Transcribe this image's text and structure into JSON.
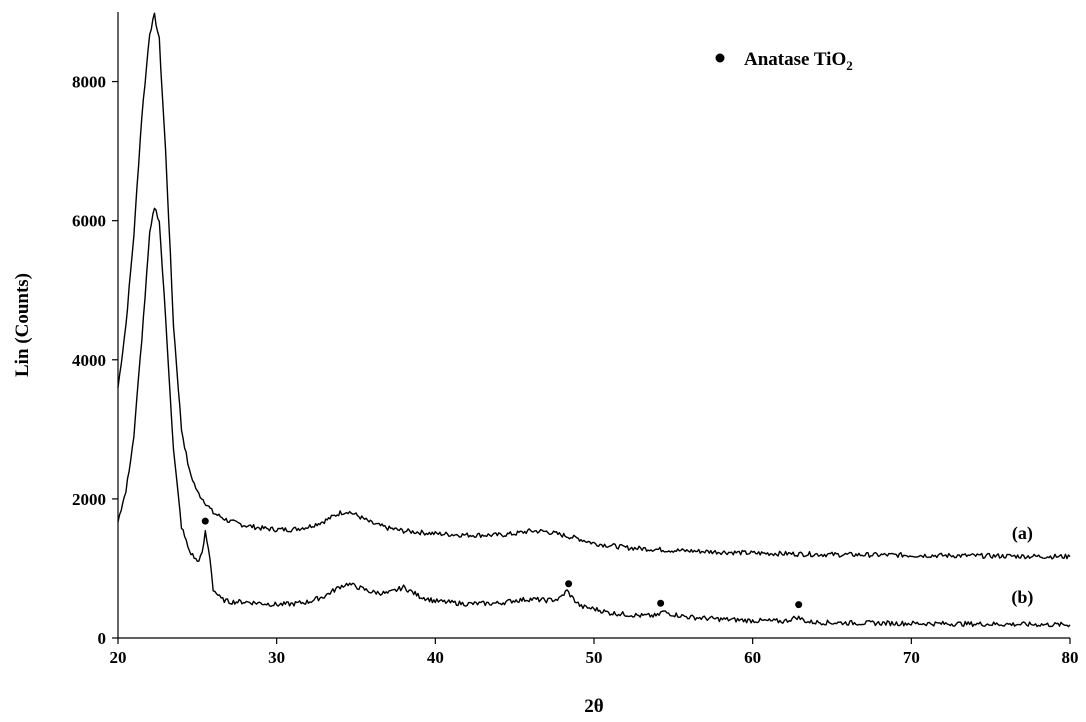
{
  "chart_data": {
    "type": "line",
    "xlabel": "2θ",
    "ylabel": "Lin (Counts)",
    "xlim": [
      20,
      80
    ],
    "ylim": [
      0,
      9000
    ],
    "x_ticks": [
      20,
      30,
      40,
      50,
      60,
      70,
      80
    ],
    "y_ticks": [
      0,
      2000,
      4000,
      6000,
      8000
    ],
    "grid": false,
    "legend": {
      "position": "top-right",
      "marker": "dot",
      "text_main": "Anatase TiO",
      "text_sub": "2"
    },
    "series": [
      {
        "name": "(a)",
        "x": [
          20,
          20.5,
          21,
          21.5,
          22,
          22.3,
          22.6,
          23,
          23.5,
          24,
          24.5,
          25,
          26,
          27,
          28,
          29,
          30,
          31,
          32,
          33,
          34,
          34.5,
          35,
          36,
          37,
          38,
          40,
          42,
          44,
          45,
          46,
          47,
          48,
          49,
          50,
          52,
          55,
          60,
          65,
          70,
          75,
          80
        ],
        "y": [
          3600,
          4500,
          5800,
          7500,
          8700,
          8950,
          8600,
          7000,
          4500,
          3000,
          2400,
          2100,
          1800,
          1680,
          1620,
          1580,
          1560,
          1560,
          1600,
          1680,
          1800,
          1820,
          1770,
          1650,
          1580,
          1540,
          1500,
          1480,
          1480,
          1500,
          1540,
          1530,
          1480,
          1430,
          1360,
          1300,
          1260,
          1220,
          1200,
          1190,
          1180,
          1170
        ]
      },
      {
        "name": "(b)",
        "x": [
          20,
          20.5,
          21,
          21.5,
          22,
          22.3,
          22.6,
          23,
          23.5,
          24,
          24.5,
          25,
          25.3,
          25.5,
          25.8,
          26,
          26.5,
          27,
          28,
          29,
          30,
          31,
          32,
          33,
          34,
          34.5,
          35,
          36,
          37,
          38,
          39,
          40,
          42,
          44,
          45,
          46,
          47,
          47.8,
          48.3,
          48.7,
          49.2,
          50,
          51,
          52,
          53,
          54,
          54.3,
          55,
          56,
          58,
          60,
          62,
          62.8,
          63.5,
          65,
          70,
          75,
          80
        ],
        "y": [
          1700,
          2100,
          2900,
          4300,
          5800,
          6200,
          6000,
          4600,
          2700,
          1600,
          1250,
          1100,
          1200,
          1520,
          1150,
          700,
          560,
          520,
          520,
          500,
          480,
          490,
          520,
          600,
          740,
          780,
          740,
          660,
          640,
          730,
          600,
          530,
          490,
          500,
          540,
          560,
          540,
          560,
          680,
          560,
          450,
          420,
          360,
          340,
          320,
          320,
          380,
          340,
          300,
          270,
          250,
          240,
          300,
          230,
          220,
          210,
          200,
          190
        ]
      }
    ],
    "peak_markers": [
      {
        "x": 25.5,
        "y": 1680
      },
      {
        "x": 48.4,
        "y": 780
      },
      {
        "x": 54.2,
        "y": 500
      },
      {
        "x": 62.9,
        "y": 480
      }
    ],
    "curve_labels": [
      {
        "text": "(a)",
        "series": "(a)",
        "x": 77,
        "y": 1420
      },
      {
        "text": "(b)",
        "series": "(b)",
        "x": 77,
        "y": 500
      }
    ]
  }
}
